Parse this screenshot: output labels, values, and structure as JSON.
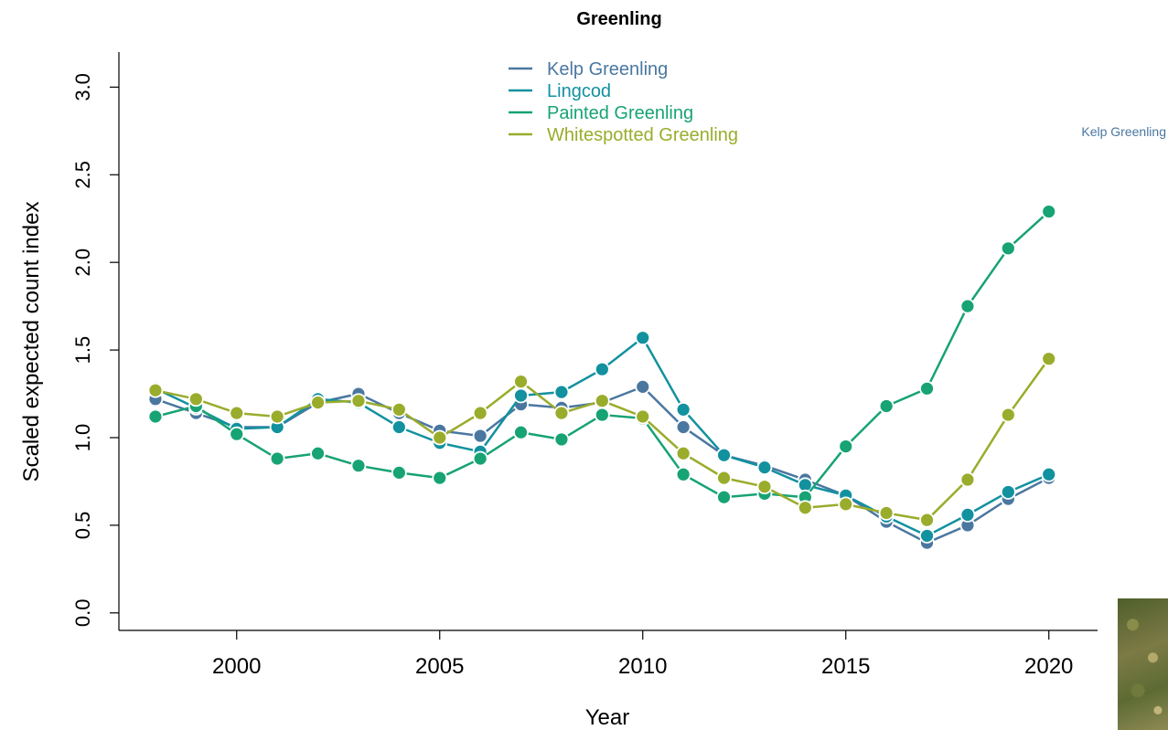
{
  "chart_data": {
    "type": "line",
    "title": "Greenling",
    "xlabel": "Year",
    "ylabel": "Scaled expected count index",
    "xlim": [
      1997.1,
      2021.2
    ],
    "ylim": [
      -0.1,
      3.2
    ],
    "x_ticks": [
      2000,
      2005,
      2010,
      2015,
      2020
    ],
    "y_ticks": [
      0.0,
      0.5,
      1.0,
      1.5,
      2.0,
      2.5,
      3.0
    ],
    "x_tick_labels": [
      "2000",
      "2005",
      "2010",
      "2015",
      "2020"
    ],
    "y_tick_labels": [
      "0.0",
      "0.5",
      "1.0",
      "1.5",
      "2.0",
      "2.5",
      "3.0"
    ],
    "legend_position": "top-center",
    "annotation": "Kelp Greenling",
    "annotation_color": "#4a77a0",
    "x": [
      1998,
      1999,
      2000,
      2001,
      2002,
      2003,
      2004,
      2005,
      2006,
      2007,
      2008,
      2009,
      2010,
      2011,
      2012,
      2013,
      2014,
      2015,
      2016,
      2017,
      2018,
      2019,
      2020
    ],
    "series": [
      {
        "name": "Kelp Greenling",
        "color": "#4a77a0",
        "values": [
          1.22,
          1.14,
          1.06,
          1.06,
          1.2,
          1.25,
          1.14,
          1.04,
          1.01,
          1.19,
          1.17,
          1.2,
          1.29,
          1.06,
          0.9,
          0.84,
          0.76,
          0.67,
          0.52,
          0.4,
          0.5,
          0.65,
          0.77
        ]
      },
      {
        "name": "Lingcod",
        "color": "#12919f",
        "values": [
          1.28,
          1.17,
          1.05,
          1.06,
          1.22,
          1.2,
          1.06,
          0.97,
          0.92,
          1.24,
          1.26,
          1.39,
          1.57,
          1.16,
          0.9,
          0.83,
          0.73,
          0.67,
          0.55,
          0.44,
          0.56,
          0.69,
          0.79
        ]
      },
      {
        "name": "Painted Greenling",
        "color": "#17a374",
        "values": [
          1.12,
          1.18,
          1.02,
          0.88,
          0.91,
          0.84,
          0.8,
          0.77,
          0.88,
          1.03,
          0.99,
          1.13,
          1.11,
          0.79,
          0.66,
          0.68,
          0.66,
          0.95,
          1.18,
          1.28,
          1.75,
          2.08,
          2.29
        ]
      },
      {
        "name": "Whitespotted Greenling",
        "color": "#9aac2b",
        "values": [
          1.27,
          1.22,
          1.14,
          1.12,
          1.2,
          1.21,
          1.16,
          1.0,
          1.14,
          1.32,
          1.14,
          1.21,
          1.12,
          0.91,
          0.77,
          0.72,
          0.6,
          0.62,
          0.57,
          0.53,
          0.76,
          1.13,
          1.45
        ]
      }
    ]
  }
}
